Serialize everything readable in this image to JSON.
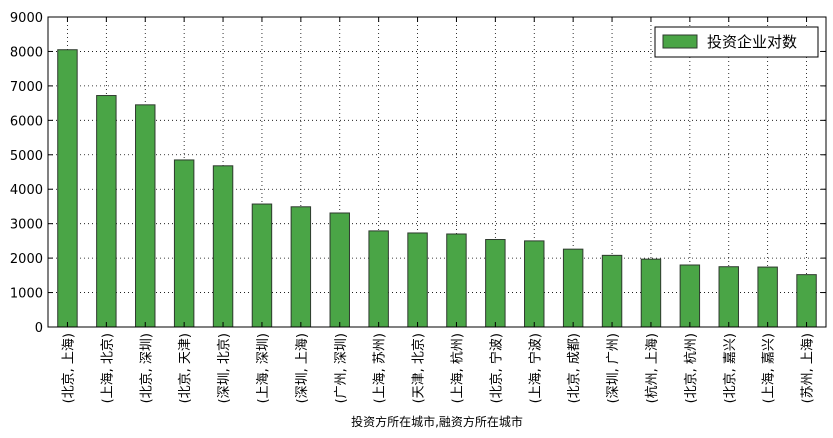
{
  "chart_data": {
    "type": "bar",
    "categories": [
      "(北京, 上海)",
      "(上海, 北京)",
      "(北京, 深圳)",
      "(北京, 天津)",
      "(深圳, 北京)",
      "(上海, 深圳)",
      "(深圳, 上海)",
      "(广州, 深圳)",
      "(上海, 苏州)",
      "(天津, 北京)",
      "(上海, 杭州)",
      "(北京, 宁波)",
      "(上海, 宁波)",
      "(北京, 成都)",
      "(深圳, 广州)",
      "(杭州, 上海)",
      "(北京, 杭州)",
      "(北京, 嘉兴)",
      "(上海, 嘉兴)",
      "(苏州, 上海)"
    ],
    "series": [
      {
        "name": "投资企业对数",
        "values": [
          8050,
          6720,
          6450,
          4850,
          4680,
          3570,
          3490,
          3310,
          2790,
          2730,
          2700,
          2540,
          2500,
          2260,
          2080,
          1970,
          1800,
          1750,
          1740,
          1520
        ]
      }
    ],
    "title": "",
    "xlabel": "投资方所在城市,融资方所在城市",
    "ylabel": "",
    "ylim": [
      0,
      9000
    ],
    "yticks": [
      0,
      1000,
      2000,
      3000,
      4000,
      5000,
      6000,
      7000,
      8000,
      9000
    ],
    "grid": true,
    "legend_position": "top-right",
    "colors": {
      "bar": "#4aa546",
      "edge": "#2e3a2e"
    }
  }
}
